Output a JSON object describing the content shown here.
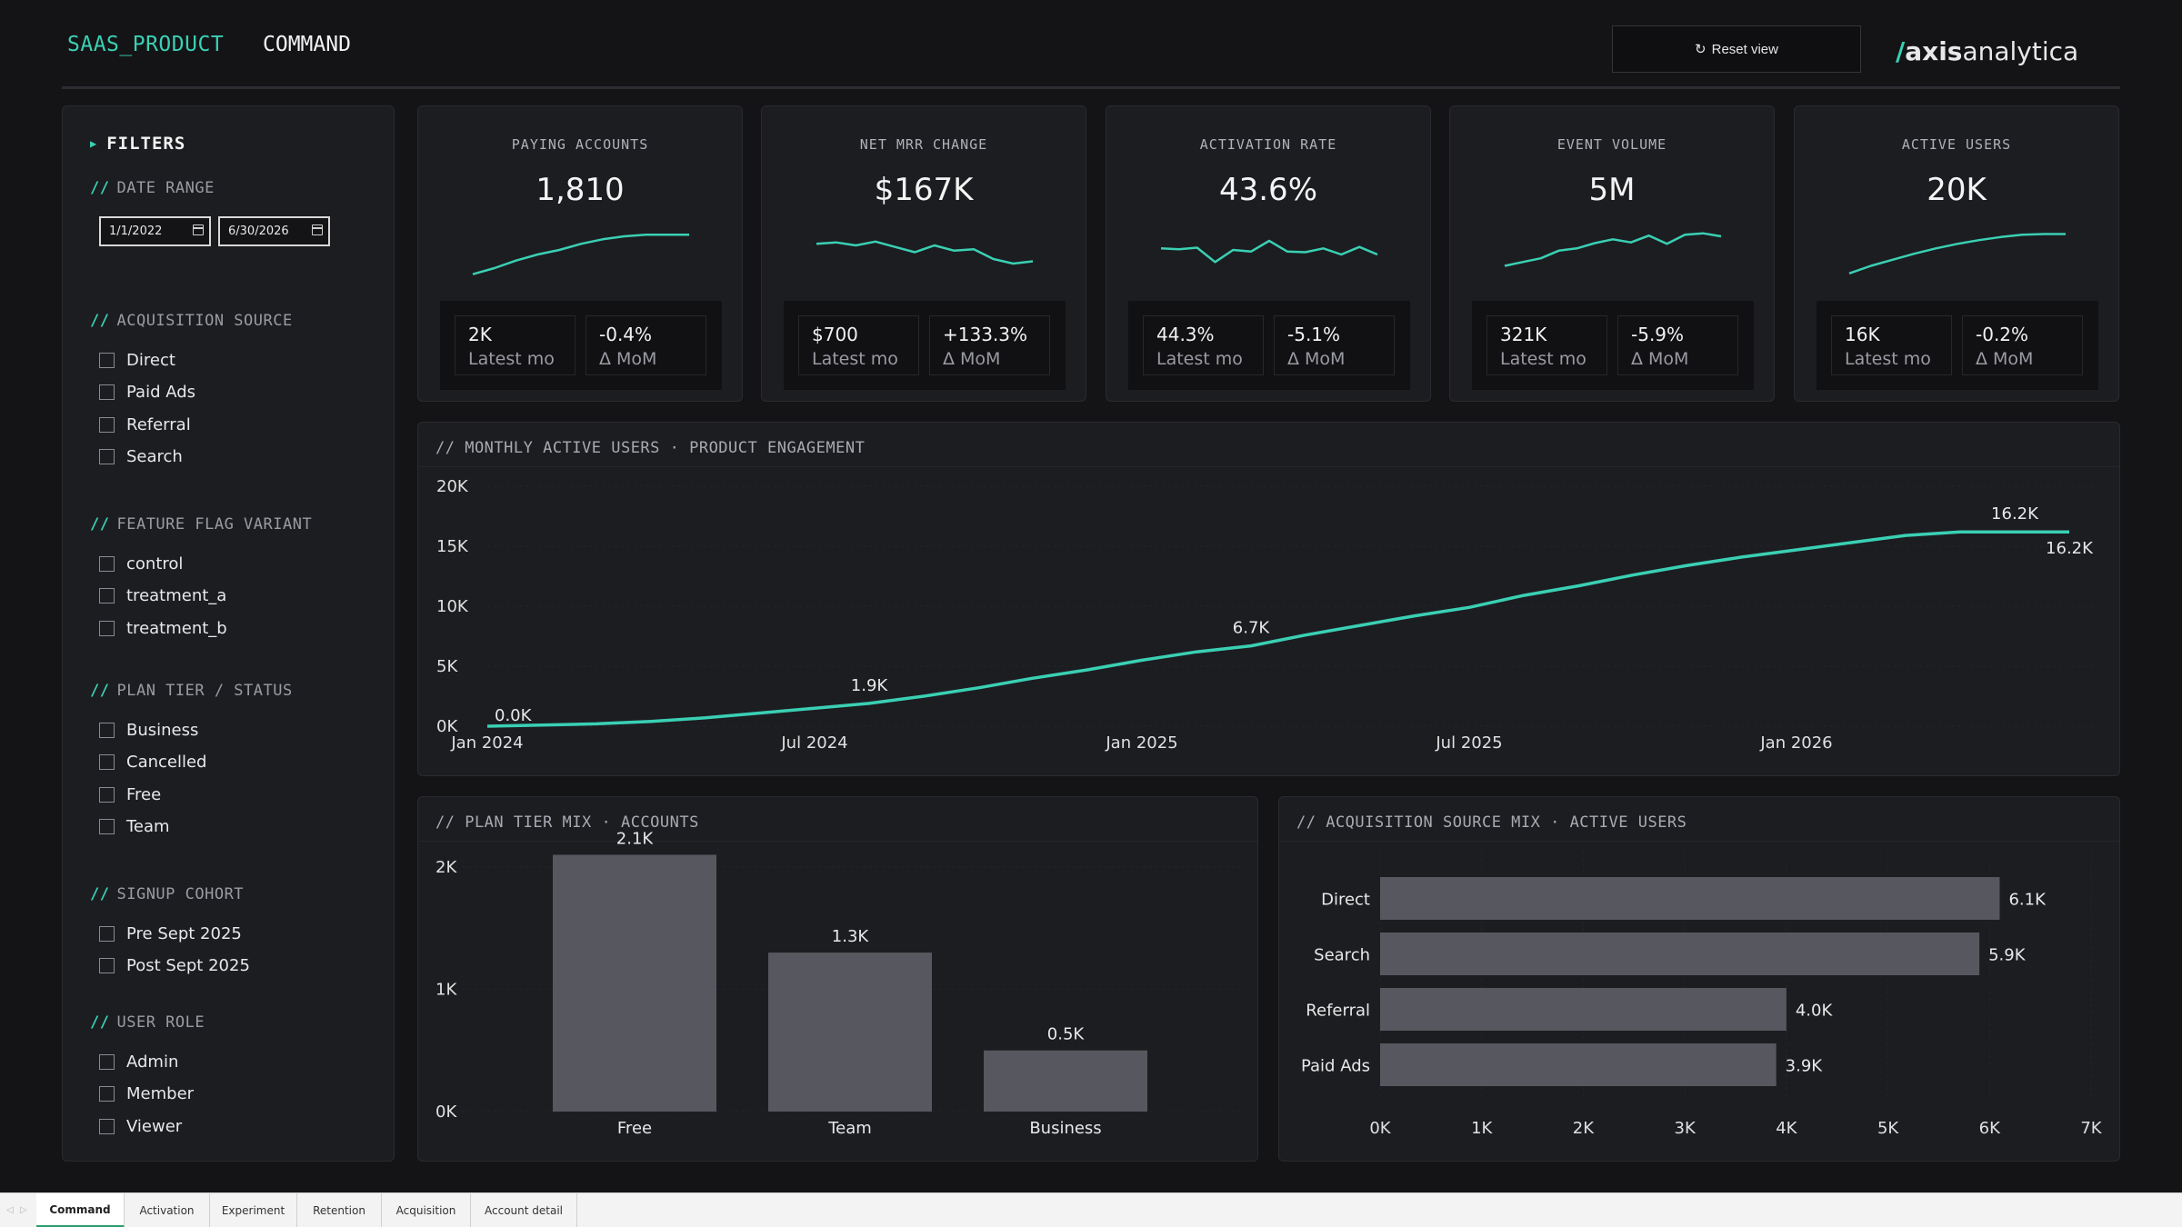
{
  "header": {
    "product": "SAAS_PRODUCT",
    "page": "COMMAND",
    "reset_icon": "↻",
    "reset_label": "Reset view",
    "logo_slash": "/",
    "logo_bold": "axis",
    "logo_rest": "analytica"
  },
  "colors": {
    "accent": "#3ad0b4",
    "bar": "#57575f",
    "bg": "#141416",
    "panel": "#1c1d21"
  },
  "filters": {
    "title": "FILTERS",
    "date_range": {
      "label": "DATE RANGE",
      "start": "1/1/2022",
      "end": "6/30/2026"
    },
    "sections": [
      {
        "label": "ACQUISITION SOURCE",
        "options": [
          "Direct",
          "Paid Ads",
          "Referral",
          "Search"
        ]
      },
      {
        "label": "FEATURE FLAG VARIANT",
        "options": [
          "control",
          "treatment_a",
          "treatment_b"
        ]
      },
      {
        "label": "PLAN TIER / STATUS",
        "options": [
          "Business",
          "Cancelled",
          "Free",
          "Team"
        ]
      },
      {
        "label": "SIGNUP COHORT",
        "options": [
          "Pre Sept 2025",
          "Post Sept 2025"
        ]
      },
      {
        "label": "USER ROLE",
        "options": [
          "Admin",
          "Member",
          "Viewer"
        ]
      }
    ]
  },
  "kpis": [
    {
      "label": "PAYING ACCOUNTS",
      "value": "1,810",
      "latest": "2K",
      "latest_label": "Latest mo",
      "mom": "-0.4%",
      "mom_label": "Δ MoM",
      "spark": [
        4,
        12,
        22,
        30,
        36,
        44,
        50,
        54,
        56,
        56,
        56
      ]
    },
    {
      "label": "NET MRR CHANGE",
      "value": "$167K",
      "latest": "$700",
      "latest_label": "Latest mo",
      "mom": "+133.3%",
      "mom_label": "Δ MoM",
      "spark": [
        44,
        46,
        42,
        47,
        40,
        33,
        42,
        35,
        37,
        24,
        18,
        21
      ]
    },
    {
      "label": "ACTIVATION RATE",
      "value": "43.6%",
      "latest": "44.3%",
      "latest_label": "Latest mo",
      "mom": "-5.1%",
      "mom_label": "Δ MoM",
      "spark": [
        38,
        37,
        39,
        20,
        36,
        34,
        48,
        34,
        33,
        38,
        30,
        40,
        30
      ]
    },
    {
      "label": "EVENT VOLUME",
      "value": "5M",
      "latest": "321K",
      "latest_label": "Latest mo",
      "mom": "-5.9%",
      "mom_label": "Δ MoM",
      "spark": [
        15,
        20,
        25,
        35,
        38,
        45,
        50,
        46,
        55,
        44,
        56,
        58,
        54
      ]
    },
    {
      "label": "ACTIVE USERS",
      "value": "20K",
      "latest": "16K",
      "latest_label": "Latest mo",
      "mom": "-0.2%",
      "mom_label": "Δ MoM",
      "spark": [
        5,
        15,
        23,
        31,
        38,
        44,
        49,
        53,
        56,
        57,
        57
      ]
    }
  ],
  "chart_data": [
    {
      "type": "line",
      "title": "// MONTHLY ACTIVE USERS · PRODUCT ENGAGEMENT",
      "x": [
        "2024-01",
        "2024-02",
        "2024-03",
        "2024-04",
        "2024-05",
        "2024-06",
        "2024-07",
        "2024-08",
        "2024-09",
        "2024-10",
        "2024-11",
        "2024-12",
        "2025-01",
        "2025-02",
        "2025-03",
        "2025-04",
        "2025-05",
        "2025-06",
        "2025-07",
        "2025-08",
        "2025-09",
        "2025-10",
        "2025-11",
        "2025-12",
        "2026-01",
        "2026-02",
        "2026-03",
        "2026-04",
        "2026-05",
        "2026-06"
      ],
      "y": [
        0,
        100,
        200,
        400,
        700,
        1100,
        1500,
        1900,
        2500,
        3200,
        4000,
        4700,
        5500,
        6200,
        6700,
        7600,
        8400,
        9200,
        9900,
        10900,
        11700,
        12600,
        13400,
        14100,
        14700,
        15300,
        15900,
        16200,
        16200,
        16200
      ],
      "data_labels": [
        {
          "index": 0,
          "text": "0.0K"
        },
        {
          "index": 7,
          "text": "1.9K"
        },
        {
          "index": 14,
          "text": "6.7K"
        },
        {
          "index": 28,
          "text": "16.2K"
        },
        {
          "index": 29,
          "text": "16.2K"
        }
      ],
      "x_ticks": [
        "Jan 2024",
        "Jul 2024",
        "Jan 2025",
        "Jul 2025",
        "Jan 2026"
      ],
      "y_ticks": [
        "0K",
        "5K",
        "10K",
        "15K",
        "20K"
      ],
      "ylim": [
        0,
        20000
      ],
      "color": "#3ad0b4",
      "grid": true
    },
    {
      "type": "bar",
      "title": "// PLAN TIER MIX · ACCOUNTS",
      "categories": [
        "Free",
        "Team",
        "Business"
      ],
      "values": [
        2100,
        1300,
        500
      ],
      "value_labels": [
        "2.1K",
        "1.3K",
        "0.5K"
      ],
      "y_ticks": [
        "0K",
        "1K",
        "2K"
      ],
      "ylim": [
        0,
        2200
      ],
      "grid": true
    },
    {
      "type": "bar",
      "orientation": "horizontal",
      "title": "// ACQUISITION SOURCE MIX · ACTIVE USERS",
      "categories": [
        "Direct",
        "Search",
        "Referral",
        "Paid Ads"
      ],
      "values": [
        6100,
        5900,
        4000,
        3900
      ],
      "value_labels": [
        "6.1K",
        "5.9K",
        "4.0K",
        "3.9K"
      ],
      "x_ticks": [
        "0K",
        "1K",
        "2K",
        "3K",
        "4K",
        "5K",
        "6K",
        "7K"
      ],
      "xlim": [
        0,
        7000
      ],
      "grid": true
    }
  ],
  "tabs": {
    "nav_prev": "◁",
    "nav_next": "▷",
    "items": [
      "Command",
      "Activation",
      "Experiment",
      "Retention",
      "Acquisition",
      "Account detail"
    ],
    "active": "Command"
  }
}
